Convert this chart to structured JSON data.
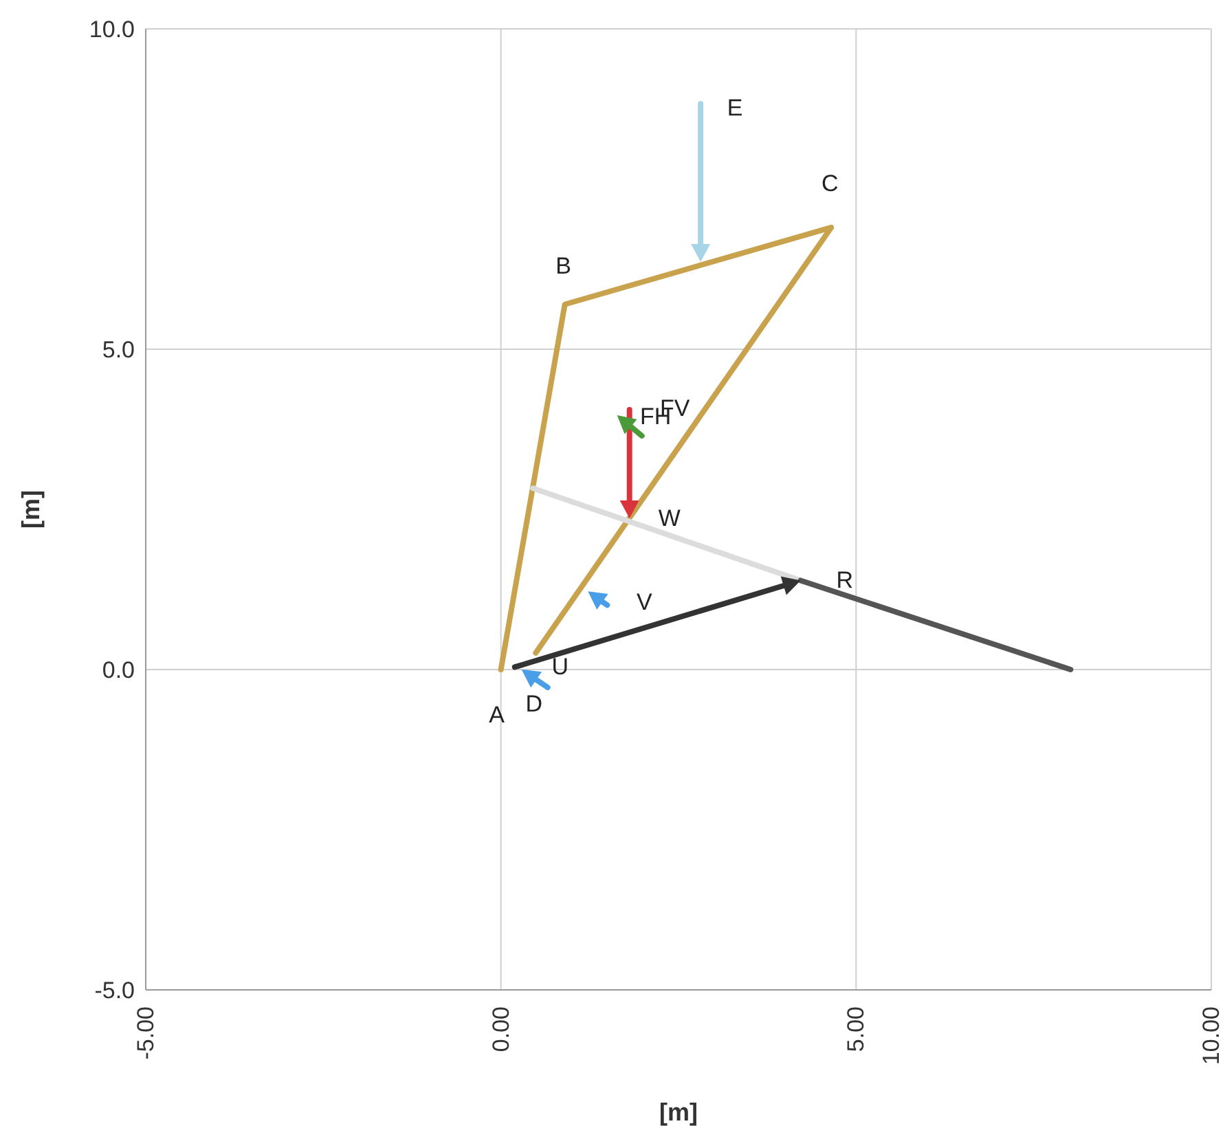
{
  "chart_data": {
    "type": "line",
    "xlabel": "[m]",
    "ylabel": "[m]",
    "grid": true,
    "xlim": [
      -5,
      10
    ],
    "xticks": [
      {
        "value": -5,
        "label": "-5.00"
      },
      {
        "value": 0,
        "label": "0.00"
      },
      {
        "value": 5,
        "label": "5.00"
      },
      {
        "value": 10,
        "label": "10.00"
      }
    ],
    "ylim": [
      -5,
      10
    ],
    "yticks": [
      {
        "value": -5,
        "label": "-5.0"
      },
      {
        "value": 0,
        "label": "0.0"
      },
      {
        "value": 5,
        "label": "5.0"
      },
      {
        "value": 10,
        "label": "10.0"
      }
    ],
    "series": [
      {
        "color": "#c9a24e",
        "x": [
          0,
          0.9,
          4.65,
          0.49
        ],
        "values": [
          0,
          5.7,
          6.9,
          0.26
        ]
      },
      {
        "color": "#dcdcdc",
        "x": [
          0.45,
          4.22
        ],
        "values": [
          2.83,
          1.39
        ]
      },
      {
        "color": "#555555",
        "x": [
          4.22,
          8.02
        ],
        "values": [
          1.39,
          0
        ]
      }
    ],
    "annotations": [
      {
        "text": "A",
        "x": 0,
        "y": 0
      },
      {
        "text": "B",
        "x": 0.9,
        "y": 5.7
      },
      {
        "text": "C",
        "x": 4.65,
        "y": 6.9
      },
      {
        "text": "D",
        "x": 0,
        "y": 0
      },
      "E",
      "FV",
      "FH",
      {
        "text": "W",
        "x": 1.81,
        "y": 2.36
      },
      {
        "text": "V",
        "x": 1.09,
        "y": 1.22
      },
      {
        "text": "U",
        "x": 0,
        "y": 0
      },
      {
        "text": "R",
        "x": 4.22,
        "y": 1.39
      }
    ]
  }
}
